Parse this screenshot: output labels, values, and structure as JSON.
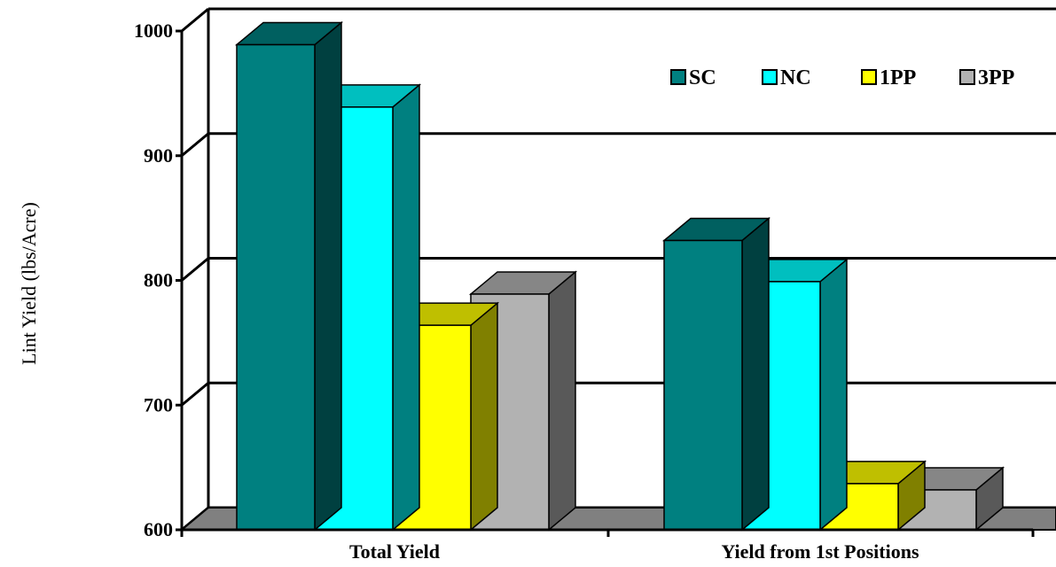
{
  "chart_data": {
    "type": "bar",
    "title": "",
    "xlabel": "",
    "ylabel": "Lint Yield (lbs/Acre)",
    "ylim": [
      600,
      1000
    ],
    "yticks": [
      600,
      700,
      800,
      900,
      1000
    ],
    "grid": true,
    "legend_position": "top-right",
    "categories": [
      "Total Yield",
      "Yield from 1st Positions"
    ],
    "series": [
      {
        "name": "SC",
        "values": [
          989,
          832
        ],
        "color": "#008080"
      },
      {
        "name": "NC",
        "values": [
          939,
          799
        ],
        "color": "#00FFFF"
      },
      {
        "name": "1PP",
        "values": [
          764,
          637
        ],
        "color": "#FFFF00"
      },
      {
        "name": "3PP",
        "values": [
          789,
          632
        ],
        "color": "#B2B2B2"
      }
    ]
  }
}
